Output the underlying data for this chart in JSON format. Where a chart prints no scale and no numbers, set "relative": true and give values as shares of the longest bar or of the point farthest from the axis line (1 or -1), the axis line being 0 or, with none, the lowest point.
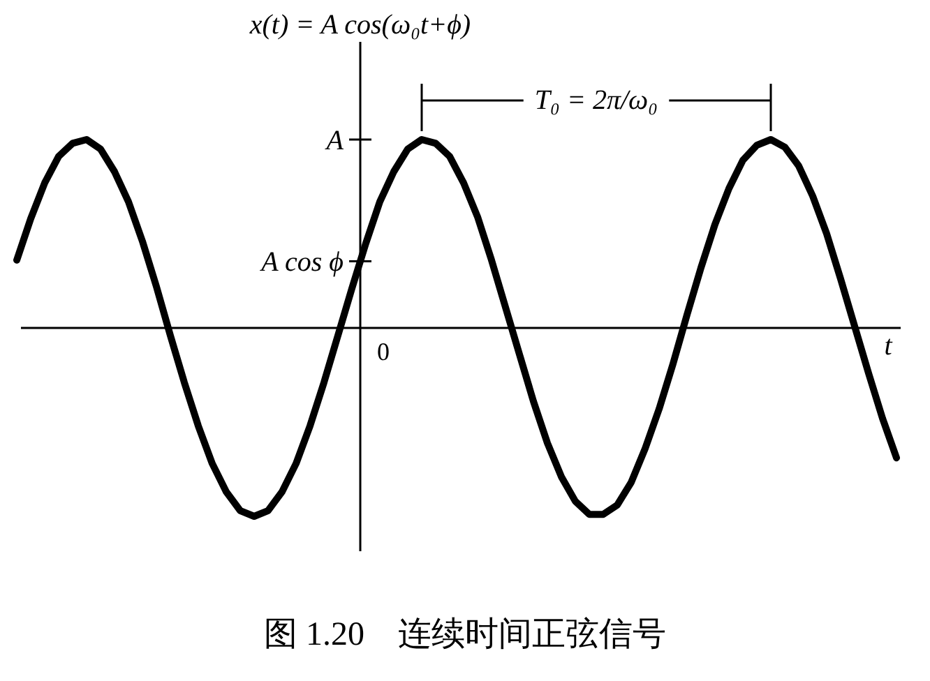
{
  "chart_data": {
    "type": "line",
    "relative": true,
    "xlabel": "t",
    "ylabel": "x(t) = A cos(ω₀t+ϕ)",
    "categories": [
      null,
      null,
      null,
      null,
      null,
      null,
      null,
      null,
      null,
      null,
      null,
      null,
      null,
      null,
      null,
      null,
      null,
      null,
      null,
      null,
      null,
      null,
      null,
      null,
      null,
      null,
      null,
      null,
      null,
      null,
      null,
      null,
      null,
      null,
      null,
      null,
      null,
      null,
      null,
      null,
      null,
      null,
      null,
      null,
      null,
      null,
      null,
      null,
      null,
      null,
      null,
      null,
      null,
      null,
      null,
      null,
      null,
      null,
      null,
      null,
      null,
      null,
      null,
      null
    ],
    "series": [
      {
        "color": "#000000",
        "values": [
          0.36,
          0.58,
          0.77,
          0.91,
          0.98,
          1.0,
          0.95,
          0.83,
          0.67,
          0.46,
          0.22,
          -0.04,
          -0.29,
          -0.52,
          -0.72,
          -0.87,
          -0.97,
          -1.0,
          -0.97,
          -0.87,
          -0.72,
          -0.52,
          -0.29,
          -0.04,
          0.21,
          0.45,
          0.67,
          0.83,
          0.95,
          1.0,
          0.98,
          0.91,
          0.77,
          0.59,
          0.36,
          0.11,
          -0.14,
          -0.39,
          -0.61,
          -0.79,
          -0.92,
          -0.99,
          -0.99,
          -0.94,
          -0.82,
          -0.64,
          -0.43,
          -0.19,
          0.07,
          0.32,
          0.55,
          0.74,
          0.89,
          0.97,
          1.0,
          0.96,
          0.86,
          0.7,
          0.5,
          0.26,
          0.01,
          -0.24,
          -0.48,
          -0.69
        ]
      }
    ],
    "annotations": [
      "A",
      "A cos ϕ",
      "0",
      "T₀ = 2π/ω₀",
      "图 1.20　连续时间正弦信号"
    ],
    "line_style": "solid"
  }
}
